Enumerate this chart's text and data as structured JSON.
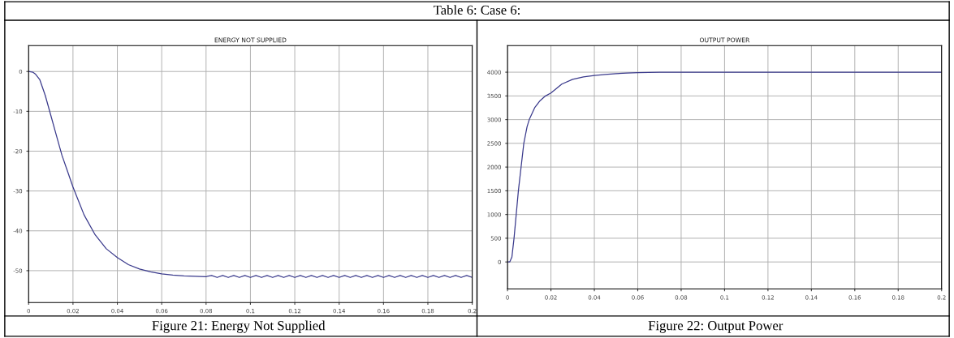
{
  "chart_data": [
    {
      "type": "line",
      "title": "ENERGY NOT SUPPLIED",
      "annotations": [
        "Table 6: Case 6:",
        "Figure 21: Energy Not Supplied"
      ],
      "x": [
        0,
        0.002,
        0.003,
        0.005,
        0.0075,
        0.01,
        0.0125,
        0.015,
        0.0175,
        0.02,
        0.025,
        0.03,
        0.035,
        0.04,
        0.045,
        0.05,
        0.055,
        0.06,
        0.065,
        0.07,
        0.075,
        0.08,
        0.0825,
        0.085,
        0.0875,
        0.09,
        0.0925,
        0.095,
        0.0975,
        0.1,
        0.1025,
        0.105,
        0.1075,
        0.11,
        0.1125,
        0.115,
        0.1175,
        0.12,
        0.1225,
        0.125,
        0.1275,
        0.13,
        0.1325,
        0.135,
        0.1375,
        0.14,
        0.1425,
        0.145,
        0.1475,
        0.15,
        0.1525,
        0.155,
        0.1575,
        0.16,
        0.1625,
        0.165,
        0.1675,
        0.17,
        0.1725,
        0.175,
        0.1775,
        0.18,
        0.1825,
        0.185,
        0.1875,
        0.19,
        0.1925,
        0.195,
        0.1975,
        0.2
      ],
      "series": [
        {
          "color": "#3a3a8c",
          "values": [
            0,
            -0.2,
            -0.6,
            -2,
            -6,
            -11,
            -16,
            -21,
            -25,
            -29,
            -36,
            -41,
            -44.5,
            -46.7,
            -48.5,
            -49.6,
            -50.3,
            -50.8,
            -51.1,
            -51.3,
            -51.4,
            -51.5,
            -51.2,
            -51.7,
            -51.2,
            -51.7,
            -51.2,
            -51.7,
            -51.2,
            -51.7,
            -51.2,
            -51.7,
            -51.2,
            -51.7,
            -51.2,
            -51.7,
            -51.2,
            -51.7,
            -51.2,
            -51.7,
            -51.2,
            -51.7,
            -51.2,
            -51.7,
            -51.2,
            -51.7,
            -51.2,
            -51.7,
            -51.2,
            -51.7,
            -51.2,
            -51.7,
            -51.2,
            -51.7,
            -51.2,
            -51.7,
            -51.2,
            -51.7,
            -51.2,
            -51.7,
            -51.2,
            -51.7,
            -51.2,
            -51.7,
            -51.2,
            -51.7,
            -51.2,
            -51.7,
            -51.2,
            -51.7
          ]
        }
      ],
      "xlim": [
        0,
        0.2
      ],
      "xticks": [
        0,
        {
          "value": 0.02,
          "label": "0.02"
        },
        {
          "value": 0.04,
          "label": "0.04"
        },
        {
          "value": 0.06,
          "label": "0.06"
        },
        {
          "value": 0.08,
          "label": "0.08"
        },
        0.1,
        0.12,
        0.14,
        0.16,
        0.18,
        0.2
      ],
      "ylim": [
        -58,
        6.5
      ],
      "yticks": [
        0,
        -10,
        -20,
        -30,
        -40,
        -50
      ],
      "grid": true
    },
    {
      "type": "line",
      "title": "OUTPUT POWER",
      "annotations": [
        "Figure 22: Output Power"
      ],
      "x": [
        0,
        0.001,
        0.002,
        0.003,
        0.004,
        0.005,
        0.0065,
        0.0075,
        0.009,
        0.01,
        0.0125,
        0.015,
        0.0175,
        0.02,
        0.025,
        0.03,
        0.035,
        0.04,
        0.045,
        0.05,
        0.055,
        0.06,
        0.07,
        0.08,
        0.1,
        0.12,
        0.14,
        0.16,
        0.18,
        0.2
      ],
      "series": [
        {
          "color": "#3a3a8c",
          "values": [
            0,
            0,
            100,
            500,
            1000,
            1500,
            2100,
            2500,
            2850,
            3000,
            3250,
            3400,
            3500,
            3560,
            3750,
            3850,
            3900,
            3930,
            3950,
            3970,
            3980,
            3990,
            4000,
            4000,
            4000,
            4000,
            4000,
            4000,
            4000,
            4000
          ]
        }
      ],
      "xlim": [
        0,
        0.2
      ],
      "xticks": [
        0,
        {
          "value": 0.02,
          "label": "0.02"
        },
        {
          "value": 0.04,
          "label": "0.04"
        },
        {
          "value": 0.06,
          "label": "0.06"
        },
        {
          "value": 0.08,
          "label": "0.08"
        },
        0.1,
        0.12,
        0.14,
        0.16,
        0.18,
        0.2
      ],
      "ylim": [
        -570,
        4560
      ],
      "yticks": [
        0,
        500,
        1000,
        1500,
        2000,
        2500,
        3000,
        3500,
        4000
      ],
      "grid": true
    }
  ]
}
